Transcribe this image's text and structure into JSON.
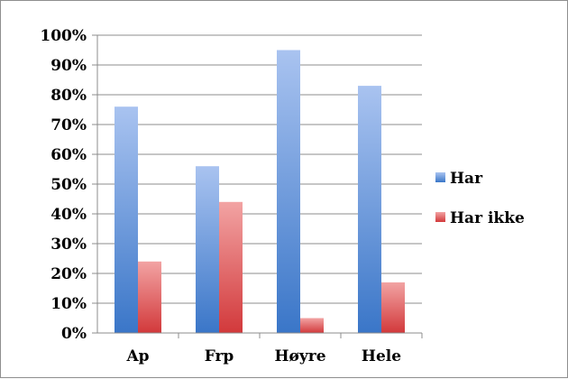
{
  "chart_data": {
    "type": "bar",
    "categories": [
      "Ap",
      "Frp",
      "Høyre",
      "Hele"
    ],
    "series": [
      {
        "name": "Har",
        "values": [
          76,
          56,
          95,
          83
        ],
        "color_top": "#a9c3f0",
        "color_bottom": "#3a76c8"
      },
      {
        "name": "Har ikke",
        "values": [
          24,
          44,
          5,
          17
        ],
        "color_top": "#f2a3a3",
        "color_bottom": "#d2393b"
      }
    ],
    "ylim": [
      0,
      100
    ],
    "y_ticks": [
      0,
      10,
      20,
      30,
      40,
      50,
      60,
      70,
      80,
      90,
      100
    ],
    "y_tick_format": "percent",
    "grid": true,
    "legend_position": "right",
    "title": "",
    "xlabel": "",
    "ylabel": ""
  }
}
